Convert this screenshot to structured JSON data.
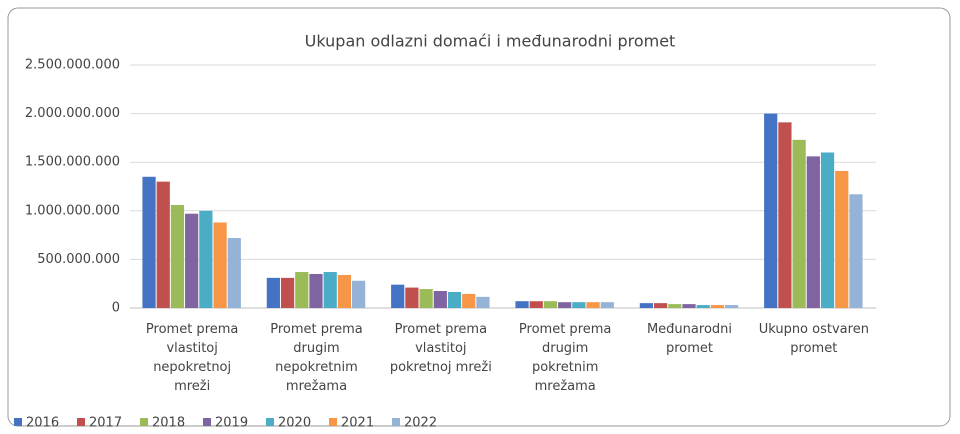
{
  "chart_data": {
    "type": "bar",
    "title": "Ukupan odlazni  domaći i međunarodni promet",
    "categories": [
      "Promet prema vlastitoj nepokretnoj mreži",
      "Promet prema drugim nepokretnim mrežama",
      "Promet prema vlastitoj pokretnoj mreži",
      "Promet prema drugim pokretnim mrežama",
      "Međunarodni promet",
      "Ukupno ostvaren promet"
    ],
    "series": [
      {
        "name": "2016",
        "color": "#4472c4",
        "values": [
          1350000000,
          310000000,
          240000000,
          70000000,
          50000000,
          2000000000
        ]
      },
      {
        "name": "2017",
        "color": "#c0504d",
        "values": [
          1300000000,
          310000000,
          210000000,
          70000000,
          50000000,
          1910000000
        ]
      },
      {
        "name": "2018",
        "color": "#9bbb59",
        "values": [
          1060000000,
          370000000,
          195000000,
          70000000,
          40000000,
          1730000000
        ]
      },
      {
        "name": "2019",
        "color": "#8064a2",
        "values": [
          970000000,
          350000000,
          175000000,
          60000000,
          40000000,
          1560000000
        ]
      },
      {
        "name": "2020",
        "color": "#4bacc6",
        "values": [
          1000000000,
          370000000,
          165000000,
          60000000,
          30000000,
          1600000000
        ]
      },
      {
        "name": "2021",
        "color": "#f79646",
        "values": [
          880000000,
          340000000,
          145000000,
          60000000,
          30000000,
          1410000000
        ]
      },
      {
        "name": "2022",
        "color": "#95b3d7",
        "values": [
          720000000,
          280000000,
          115000000,
          60000000,
          30000000,
          1170000000
        ]
      }
    ],
    "ylim": [
      0,
      2500000000
    ],
    "yticks": [
      0,
      {
        "value": 500000000,
        "label": "500.000.000"
      },
      {
        "value": 1000000000,
        "label": "1.000.000.000"
      },
      {
        "value": 1500000000,
        "label": "1.500.000.000"
      },
      {
        "value": 2000000000,
        "label": "2.000.000.000"
      },
      {
        "value": 2500000000,
        "label": "2.500.000.000"
      }
    ],
    "grid": true,
    "legend": "bottom"
  }
}
